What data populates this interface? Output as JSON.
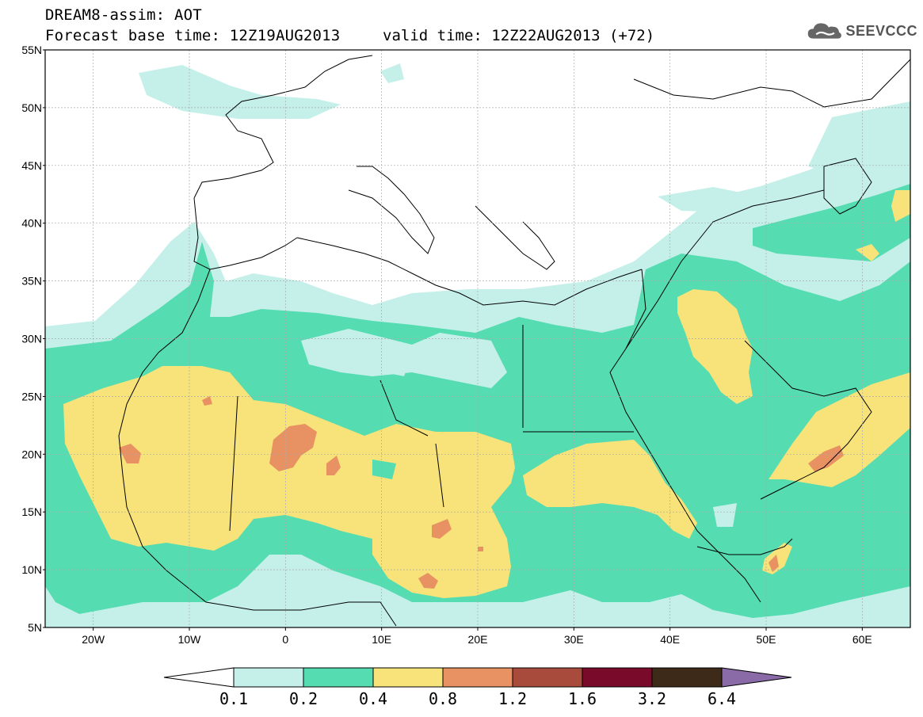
{
  "header": {
    "title": "DREAM8-assim: AOT",
    "forecast_base": "Forecast base time: 12Z19AUG2013",
    "valid_time": "valid time: 12Z22AUG2013 (+72)"
  },
  "logo": {
    "text": "SEEVCCC",
    "icon": "cloud-icon"
  },
  "map": {
    "lat_labels": [
      "55N",
      "50N",
      "45N",
      "40N",
      "35N",
      "30N",
      "25N",
      "20N",
      "15N",
      "10N",
      "5N"
    ],
    "lon_labels": [
      "20W",
      "10W",
      "0",
      "10E",
      "20E",
      "30E",
      "40E",
      "50E",
      "60E"
    ],
    "lat_range": [
      5,
      55
    ],
    "lon_range": [
      -25,
      65
    ],
    "grid": true
  },
  "colorbar": {
    "levels": [
      "0.1",
      "0.2",
      "0.4",
      "0.8",
      "1.2",
      "1.6",
      "3.2",
      "6.4"
    ],
    "colors": [
      "#c5f0ea",
      "#55dcb0",
      "#f7e37a",
      "#e89162",
      "#a84a3c",
      "#7a0a2a",
      "#3d2a18"
    ],
    "under_color": "#ffffff",
    "over_color": "#8b6aa8"
  },
  "colors": {
    "aot_0_1": "#c5f0ea",
    "aot_0_2": "#55dcb0",
    "aot_0_4": "#f7e37a",
    "aot_0_8": "#e89162"
  }
}
